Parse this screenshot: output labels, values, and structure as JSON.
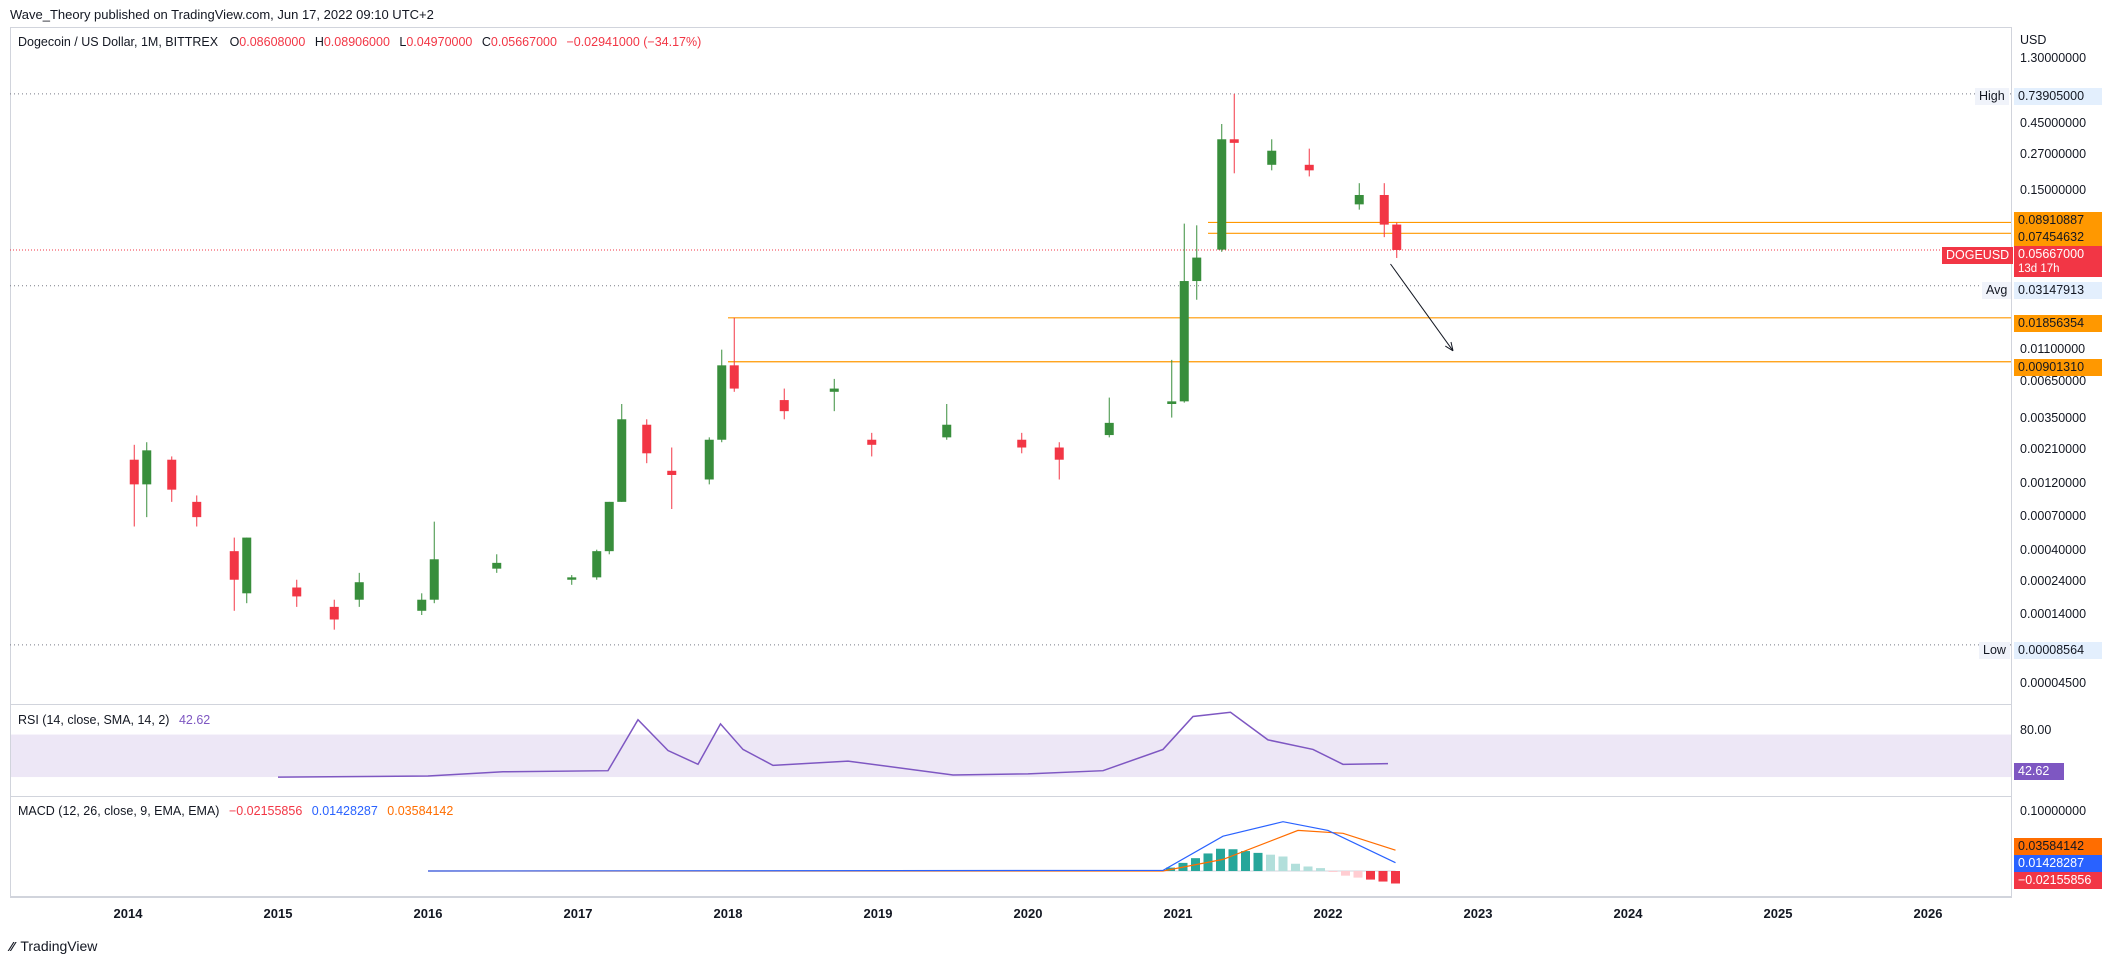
{
  "header": {
    "published": "Wave_Theory published on TradingView.com, Jun 17, 2022 09:10 UTC+2"
  },
  "main_legend": {
    "symbol": "Dogecoin / US Dollar, 1M, BITTREX",
    "o_label": "O",
    "o_value": "0.08608000",
    "h_label": "H",
    "h_value": "0.08906000",
    "l_label": "L",
    "l_value": "0.04970000",
    "c_label": "C",
    "c_value": "0.05667000",
    "change": "−0.02941000 (−34.17%)"
  },
  "rsi_legend": {
    "label": "RSI (14, close, SMA, 14, 2)",
    "value": "42.62"
  },
  "macd_legend": {
    "label": "MACD (12, 26, close, 9, EMA, EMA)",
    "hist": "−0.02155856",
    "macd": "0.01428287",
    "signal": "0.03584142"
  },
  "axis": {
    "currency": "USD",
    "price_ticks": [
      "1.30000000",
      "0.45000000",
      "0.27000000",
      "0.15000000",
      "0.01100000",
      "0.00650000",
      "0.00350000",
      "0.00210000",
      "0.00120000",
      "0.00070000",
      "0.00040000",
      "0.00024000",
      "0.00014000",
      "0.00004500"
    ],
    "rsi_tick": "80.00",
    "macd_tick": "0.10000000",
    "years": [
      "2014",
      "2015",
      "2016",
      "2017",
      "2018",
      "2019",
      "2020",
      "2021",
      "2022",
      "2023",
      "2024",
      "2025",
      "2026"
    ]
  },
  "price_tags": {
    "high_label": "High",
    "high": "0.73905000",
    "level1": "0.08910887",
    "level2": "0.07454632",
    "symbol_tag": "DOGEUSD",
    "last": "0.05667000",
    "countdown": "13d 17h",
    "avg_label": "Avg",
    "avg": "0.03147913",
    "level3": "0.01856354",
    "level4": "0.00901310",
    "low_label": "Low",
    "low": "0.00008564",
    "rsi_value": "42.62",
    "macd_signal": "0.03584142",
    "macd_line": "0.01428287",
    "macd_hist": "−0.02155856"
  },
  "footer": {
    "brand": "TradingView"
  },
  "colors": {
    "up": "#388e3c",
    "down": "#f23645",
    "level": "#ff9800",
    "rsi": "#7e57c2",
    "rsi_band": "#ede7f6",
    "macd": "#2962ff",
    "signal": "#ff6d00",
    "text": "#131722"
  },
  "chart_data": {
    "type": "candlestick",
    "title": "Dogecoin / US Dollar, 1M, BITTREX",
    "y_scale": "log",
    "ylim": [
      2.5e-05,
      1.3
    ],
    "x_range": [
      "2013-06",
      "2026-12"
    ],
    "horizontal_levels": [
      0.08910887,
      0.07454632,
      0.01856354,
      0.0090131
    ],
    "reference_lines": {
      "high": 0.73905,
      "avg": 0.03147913,
      "low": 8.564e-05,
      "last": 0.05667
    },
    "projection_arrow": {
      "from": {
        "date": "2022-06",
        "price": 0.045
      },
      "to": {
        "date": "2022-11",
        "price": 0.0108
      }
    },
    "candles_sampled": [
      {
        "date": "2014-01",
        "o": 0.0018,
        "h": 0.0023,
        "l": 0.0006,
        "c": 0.0012
      },
      {
        "date": "2014-02",
        "o": 0.0012,
        "h": 0.0024,
        "l": 0.0007,
        "c": 0.0021
      },
      {
        "date": "2014-04",
        "o": 0.0018,
        "h": 0.0019,
        "l": 0.0009,
        "c": 0.0011
      },
      {
        "date": "2014-06",
        "o": 0.0009,
        "h": 0.001,
        "l": 0.0006,
        "c": 0.0007
      },
      {
        "date": "2014-09",
        "o": 0.0004,
        "h": 0.0005,
        "l": 0.00015,
        "c": 0.00025
      },
      {
        "date": "2014-10",
        "o": 0.0002,
        "h": 0.0005,
        "l": 0.00017,
        "c": 0.0005
      },
      {
        "date": "2015-02",
        "o": 0.00022,
        "h": 0.00025,
        "l": 0.00016,
        "c": 0.00019
      },
      {
        "date": "2015-05",
        "o": 0.00016,
        "h": 0.00018,
        "l": 0.00011,
        "c": 0.00013
      },
      {
        "date": "2015-07",
        "o": 0.00018,
        "h": 0.00028,
        "l": 0.00016,
        "c": 0.00024
      },
      {
        "date": "2015-12",
        "o": 0.00015,
        "h": 0.0002,
        "l": 0.00014,
        "c": 0.00018
      },
      {
        "date": "2016-01",
        "o": 0.00018,
        "h": 0.00065,
        "l": 0.00017,
        "c": 0.00035
      },
      {
        "date": "2016-06",
        "o": 0.0003,
        "h": 0.00038,
        "l": 0.00028,
        "c": 0.00033
      },
      {
        "date": "2016-12",
        "o": 0.00025,
        "h": 0.00027,
        "l": 0.00023,
        "c": 0.00026
      },
      {
        "date": "2017-02",
        "o": 0.00026,
        "h": 0.00041,
        "l": 0.00025,
        "c": 0.0004
      },
      {
        "date": "2017-03",
        "o": 0.0004,
        "h": 0.0009,
        "l": 0.00038,
        "c": 0.0009
      },
      {
        "date": "2017-04",
        "o": 0.0009,
        "h": 0.0045,
        "l": 0.0009,
        "c": 0.0035
      },
      {
        "date": "2017-06",
        "o": 0.0032,
        "h": 0.0035,
        "l": 0.0017,
        "c": 0.002
      },
      {
        "date": "2017-08",
        "o": 0.0015,
        "h": 0.0022,
        "l": 0.0008,
        "c": 0.0014
      },
      {
        "date": "2017-11",
        "o": 0.0013,
        "h": 0.0026,
        "l": 0.0012,
        "c": 0.0025
      },
      {
        "date": "2017-12",
        "o": 0.0025,
        "h": 0.011,
        "l": 0.0024,
        "c": 0.0085
      },
      {
        "date": "2018-01",
        "o": 0.0085,
        "h": 0.01856354,
        "l": 0.0055,
        "c": 0.0058
      },
      {
        "date": "2018-05",
        "o": 0.0048,
        "h": 0.0058,
        "l": 0.0035,
        "c": 0.004
      },
      {
        "date": "2018-09",
        "o": 0.0055,
        "h": 0.0068,
        "l": 0.004,
        "c": 0.0058
      },
      {
        "date": "2018-12",
        "o": 0.0025,
        "h": 0.0028,
        "l": 0.0019,
        "c": 0.0023
      },
      {
        "date": "2019-06",
        "o": 0.0026,
        "h": 0.0045,
        "l": 0.0025,
        "c": 0.0032
      },
      {
        "date": "2019-12",
        "o": 0.0025,
        "h": 0.0028,
        "l": 0.002,
        "c": 0.0022
      },
      {
        "date": "2020-03",
        "o": 0.0022,
        "h": 0.0024,
        "l": 0.0013,
        "c": 0.0018
      },
      {
        "date": "2020-07",
        "o": 0.0027,
        "h": 0.005,
        "l": 0.0026,
        "c": 0.0033
      },
      {
        "date": "2020-12",
        "o": 0.0045,
        "h": 0.0093,
        "l": 0.0036,
        "c": 0.0047
      },
      {
        "date": "2021-01",
        "o": 0.0047,
        "h": 0.0875,
        "l": 0.0046,
        "c": 0.034
      },
      {
        "date": "2021-02",
        "o": 0.034,
        "h": 0.085,
        "l": 0.025,
        "c": 0.05
      },
      {
        "date": "2021-04",
        "o": 0.057,
        "h": 0.45,
        "l": 0.055,
        "c": 0.35
      },
      {
        "date": "2021-05",
        "o": 0.35,
        "h": 0.73905,
        "l": 0.2,
        "c": 0.33
      },
      {
        "date": "2021-08",
        "o": 0.23,
        "h": 0.35,
        "l": 0.21,
        "c": 0.29
      },
      {
        "date": "2021-11",
        "o": 0.23,
        "h": 0.3,
        "l": 0.19,
        "c": 0.21
      },
      {
        "date": "2022-03",
        "o": 0.12,
        "h": 0.17,
        "l": 0.11,
        "c": 0.14
      },
      {
        "date": "2022-05",
        "o": 0.14,
        "h": 0.17,
        "l": 0.07,
        "c": 0.086
      },
      {
        "date": "2022-06",
        "o": 0.08608,
        "h": 0.08906,
        "l": 0.0497,
        "c": 0.05667
      }
    ],
    "rsi": {
      "name": "RSI (14, close, SMA, 14, 2)",
      "upper_band": 70,
      "lower_band": 30,
      "points": [
        [
          2015.0,
          30
        ],
        [
          2016.0,
          31
        ],
        [
          2016.5,
          35
        ],
        [
          2017.2,
          36
        ],
        [
          2017.4,
          84
        ],
        [
          2017.6,
          55
        ],
        [
          2017.8,
          42
        ],
        [
          2017.95,
          80
        ],
        [
          2018.1,
          56
        ],
        [
          2018.3,
          41
        ],
        [
          2018.8,
          45
        ],
        [
          2019.5,
          32
        ],
        [
          2020.0,
          33
        ],
        [
          2020.5,
          36
        ],
        [
          2020.9,
          56
        ],
        [
          2021.1,
          87
        ],
        [
          2021.35,
          91
        ],
        [
          2021.6,
          65
        ],
        [
          2021.9,
          56
        ],
        [
          2022.1,
          42
        ],
        [
          2022.4,
          42.62
        ]
      ]
    },
    "macd": {
      "name": "MACD (12, 26, close, 9, EMA, EMA)",
      "macd_points": [
        [
          2016.0,
          0.0
        ],
        [
          2020.9,
          0.001
        ],
        [
          2021.3,
          0.06
        ],
        [
          2021.7,
          0.085
        ],
        [
          2022.0,
          0.07
        ],
        [
          2022.45,
          0.01428287
        ]
      ],
      "signal_points": [
        [
          2016.0,
          0.0
        ],
        [
          2020.9,
          0.0
        ],
        [
          2021.3,
          0.02
        ],
        [
          2021.8,
          0.07
        ],
        [
          2022.1,
          0.065
        ],
        [
          2022.45,
          0.03584142
        ]
      ],
      "hist_last": -0.02155856
    }
  }
}
